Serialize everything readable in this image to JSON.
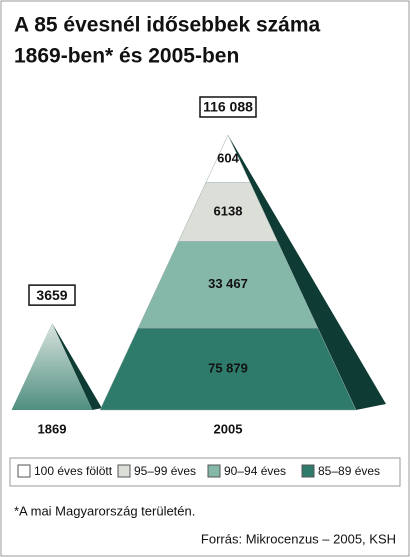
{
  "chart_data": {
    "type": "pyramid",
    "title": [
      "A 85 évesnél idősebbek száma",
      "1869-ben* és 2005-ben"
    ],
    "categories": [
      "1869",
      "2005"
    ],
    "totals": {
      "values": [
        3659,
        116088
      ],
      "value_labels": [
        "3659",
        "116 088"
      ]
    },
    "series": [
      {
        "name": "85–89 éves",
        "color": "#2f7b6b",
        "values": [
          null,
          75879
        ],
        "value_labels": [
          null,
          "75 879"
        ]
      },
      {
        "name": "90–94 éves",
        "color": "#86b8aa",
        "values": [
          null,
          33467
        ],
        "value_labels": [
          null,
          "33 467"
        ]
      },
      {
        "name": "95–99 éves",
        "color": "#dcdfd8",
        "values": [
          null,
          6138
        ],
        "value_labels": [
          null,
          "6138"
        ]
      },
      {
        "name": "100 éves fölött",
        "color": "#ffffff",
        "values": [
          null,
          604
        ],
        "value_labels": [
          null,
          "604"
        ]
      }
    ],
    "footnote": "*A mai Magyarország területén.",
    "source": "Forrás: Mikrocenzus – 2005, KSH"
  }
}
